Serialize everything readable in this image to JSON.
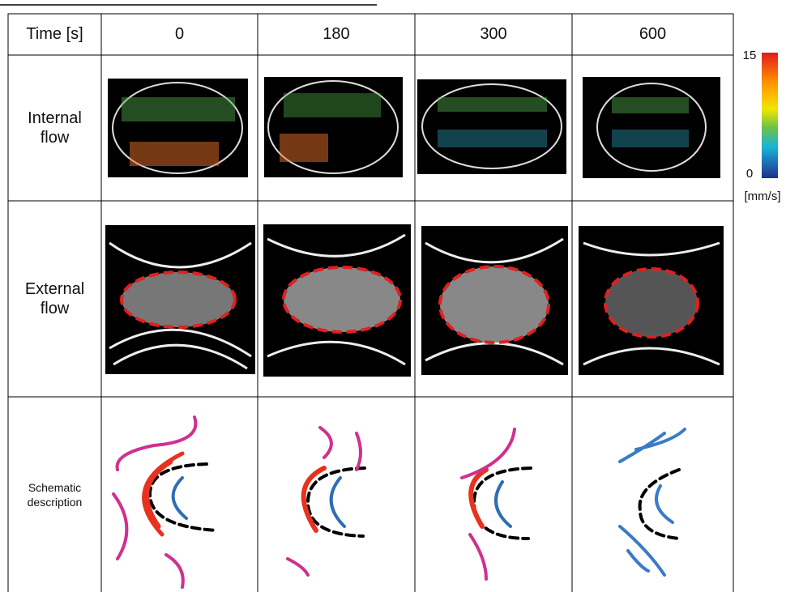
{
  "table": {
    "header": [
      "Time [s]",
      "0",
      "180",
      "300",
      "600"
    ],
    "rows": [
      "Internal flow",
      "External flow",
      "Schematic description"
    ]
  },
  "colorbar": {
    "max": "15",
    "min": "0",
    "unit": "[mm/s]"
  }
}
